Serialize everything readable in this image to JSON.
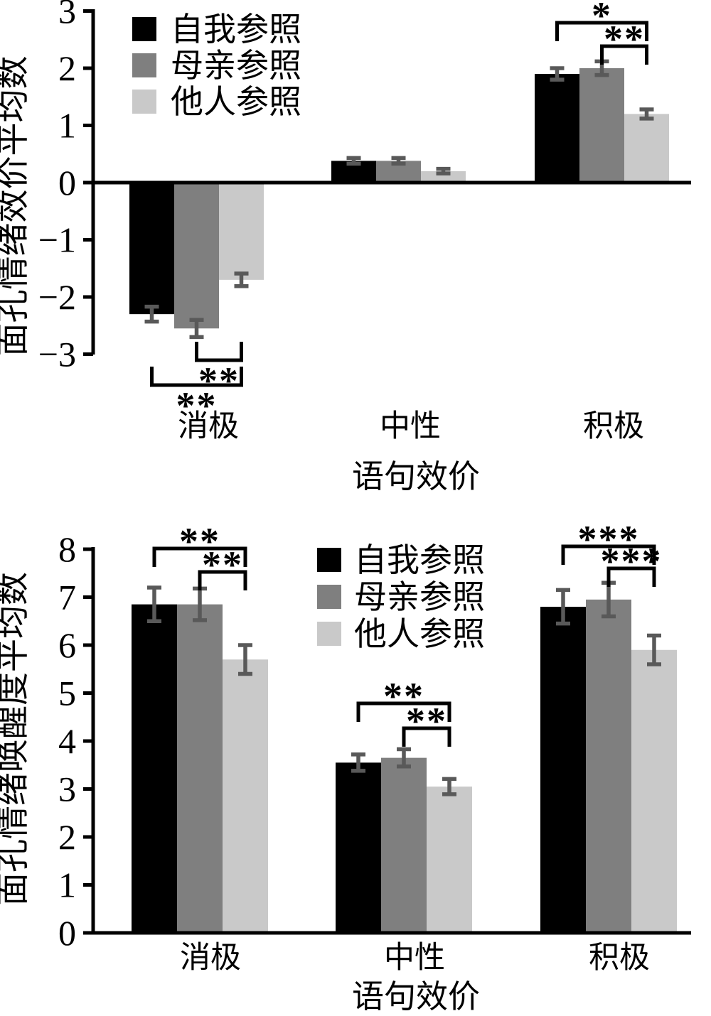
{
  "chart_data": [
    {
      "id": "valence-chart",
      "type": "bar",
      "title": "",
      "ylabel": "面孔情绪效价平均数",
      "xlabel": "语句效价",
      "categories": [
        "消极",
        "中性",
        "积极"
      ],
      "series": [
        {
          "name": "自我参照",
          "color": "#000000",
          "values": [
            -2.3,
            0.38,
            1.9
          ],
          "errors": [
            0.13,
            0.05,
            0.1
          ]
        },
        {
          "name": "母亲参照",
          "color": "#7f7f7f",
          "values": [
            -2.55,
            0.38,
            2.0
          ],
          "errors": [
            0.15,
            0.05,
            0.12
          ]
        },
        {
          "name": "他人参照",
          "color": "#c9c9c9",
          "values": [
            -1.7,
            0.2,
            1.2
          ],
          "errors": [
            0.11,
            0.04,
            0.08
          ]
        }
      ],
      "ylim": [
        -3,
        3
      ],
      "yticks": [
        "3",
        "2",
        "1",
        "0",
        "−1",
        "−2",
        "−3"
      ],
      "ytick_values": [
        3,
        2,
        1,
        0,
        -1,
        -2,
        -3
      ],
      "grid": false,
      "legend_position": "top-left-inside",
      "error_bar_color": "#595959",
      "axis_color": "#000000",
      "significance": [
        {
          "group": 2,
          "pair": [
            0,
            2
          ],
          "stars": "*"
        },
        {
          "group": 2,
          "pair": [
            1,
            2
          ],
          "stars": "**"
        },
        {
          "group": 0,
          "pair": [
            1,
            2
          ],
          "stars": "**"
        },
        {
          "group": 0,
          "pair": [
            0,
            2
          ],
          "stars": "**"
        }
      ]
    },
    {
      "id": "arousal-chart",
      "type": "bar",
      "title": "",
      "ylabel": "面孔情绪唤醒度平均数",
      "xlabel": "语句效价",
      "categories": [
        "消极",
        "中性",
        "积极"
      ],
      "series": [
        {
          "name": "自我参照",
          "color": "#000000",
          "values": [
            6.85,
            3.55,
            6.8
          ],
          "errors": [
            0.35,
            0.17,
            0.35
          ]
        },
        {
          "name": "母亲参照",
          "color": "#7f7f7f",
          "values": [
            6.85,
            3.65,
            6.95
          ],
          "errors": [
            0.33,
            0.18,
            0.35
          ]
        },
        {
          "name": "他人参照",
          "color": "#c9c9c9",
          "values": [
            5.7,
            3.05,
            5.9
          ],
          "errors": [
            0.3,
            0.16,
            0.3
          ]
        }
      ],
      "ylim": [
        0,
        8
      ],
      "yticks": [
        "8",
        "7",
        "6",
        "5",
        "4",
        "3",
        "2",
        "1",
        "0"
      ],
      "ytick_values": [
        8,
        7,
        6,
        5,
        4,
        3,
        2,
        1,
        0
      ],
      "grid": false,
      "legend_position": "top-center-inside",
      "error_bar_color": "#595959",
      "axis_color": "#000000",
      "significance": [
        {
          "group": 0,
          "pair": [
            0,
            2
          ],
          "stars": "**"
        },
        {
          "group": 0,
          "pair": [
            1,
            2
          ],
          "stars": "**"
        },
        {
          "group": 1,
          "pair": [
            0,
            2
          ],
          "stars": "**"
        },
        {
          "group": 1,
          "pair": [
            1,
            2
          ],
          "stars": "**"
        },
        {
          "group": 2,
          "pair": [
            0,
            2
          ],
          "stars": "***"
        },
        {
          "group": 2,
          "pair": [
            1,
            2
          ],
          "stars": "***"
        }
      ]
    }
  ]
}
